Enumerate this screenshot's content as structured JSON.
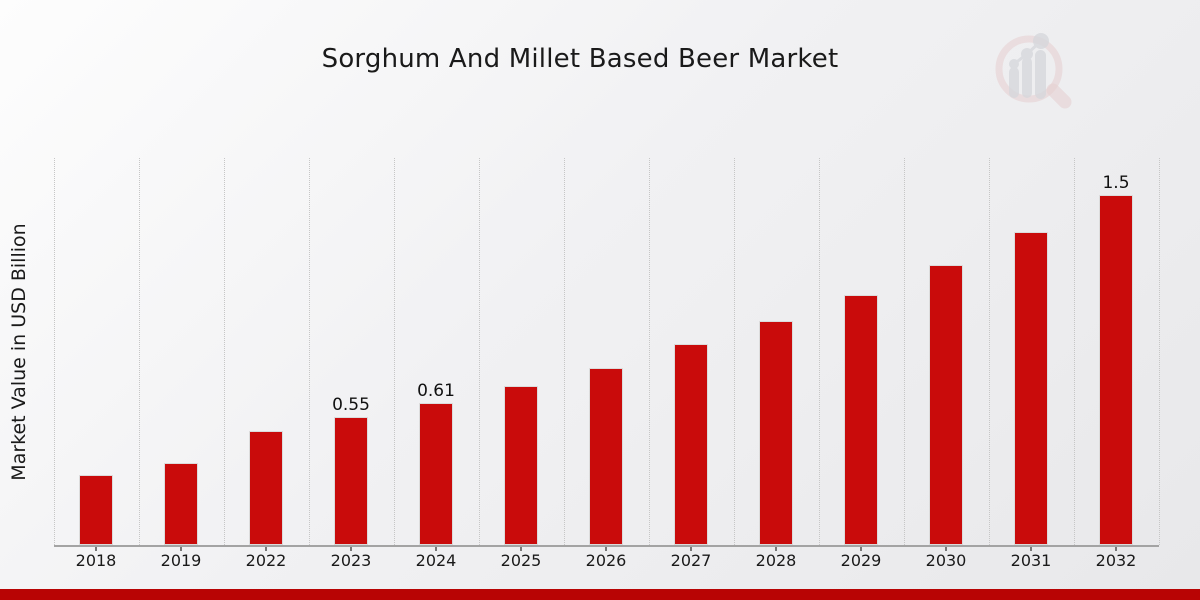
{
  "header": {
    "title": "Sorghum And Millet Based Beer Market"
  },
  "y_axis": {
    "label": "Market Value in USD Billion"
  },
  "watermark": {
    "icon": "magnifier-bar-chart-logo"
  },
  "colors": {
    "bar": "#C90B0B",
    "bottom_strip": "#B80404",
    "grid": "#c6c6c6",
    "axis": "#a3a3a3",
    "text": "#1a1a1a",
    "watermark_pink": "#dfb5b5",
    "watermark_gray": "#bfc2c9"
  },
  "chart_data": {
    "type": "bar",
    "title": "Sorghum And Millet Based Beer Market",
    "xlabel": "",
    "ylabel": "Market Value in USD Billion",
    "categories": [
      "2018",
      "2019",
      "2022",
      "2023",
      "2024",
      "2025",
      "2026",
      "2027",
      "2028",
      "2029",
      "2030",
      "2031",
      "2032"
    ],
    "values": [
      0.3,
      0.35,
      0.49,
      0.55,
      0.61,
      0.68,
      0.76,
      0.86,
      0.96,
      1.07,
      1.2,
      1.34,
      1.5
    ],
    "data_labels": [
      null,
      null,
      null,
      "0.55",
      "0.61",
      null,
      null,
      null,
      null,
      null,
      null,
      null,
      "1.5"
    ],
    "unit": "USD Billion",
    "ylim": [
      0,
      1.65
    ],
    "grid": "vertical-dotted",
    "legend": "none",
    "bar_color": "#C90B0B"
  }
}
